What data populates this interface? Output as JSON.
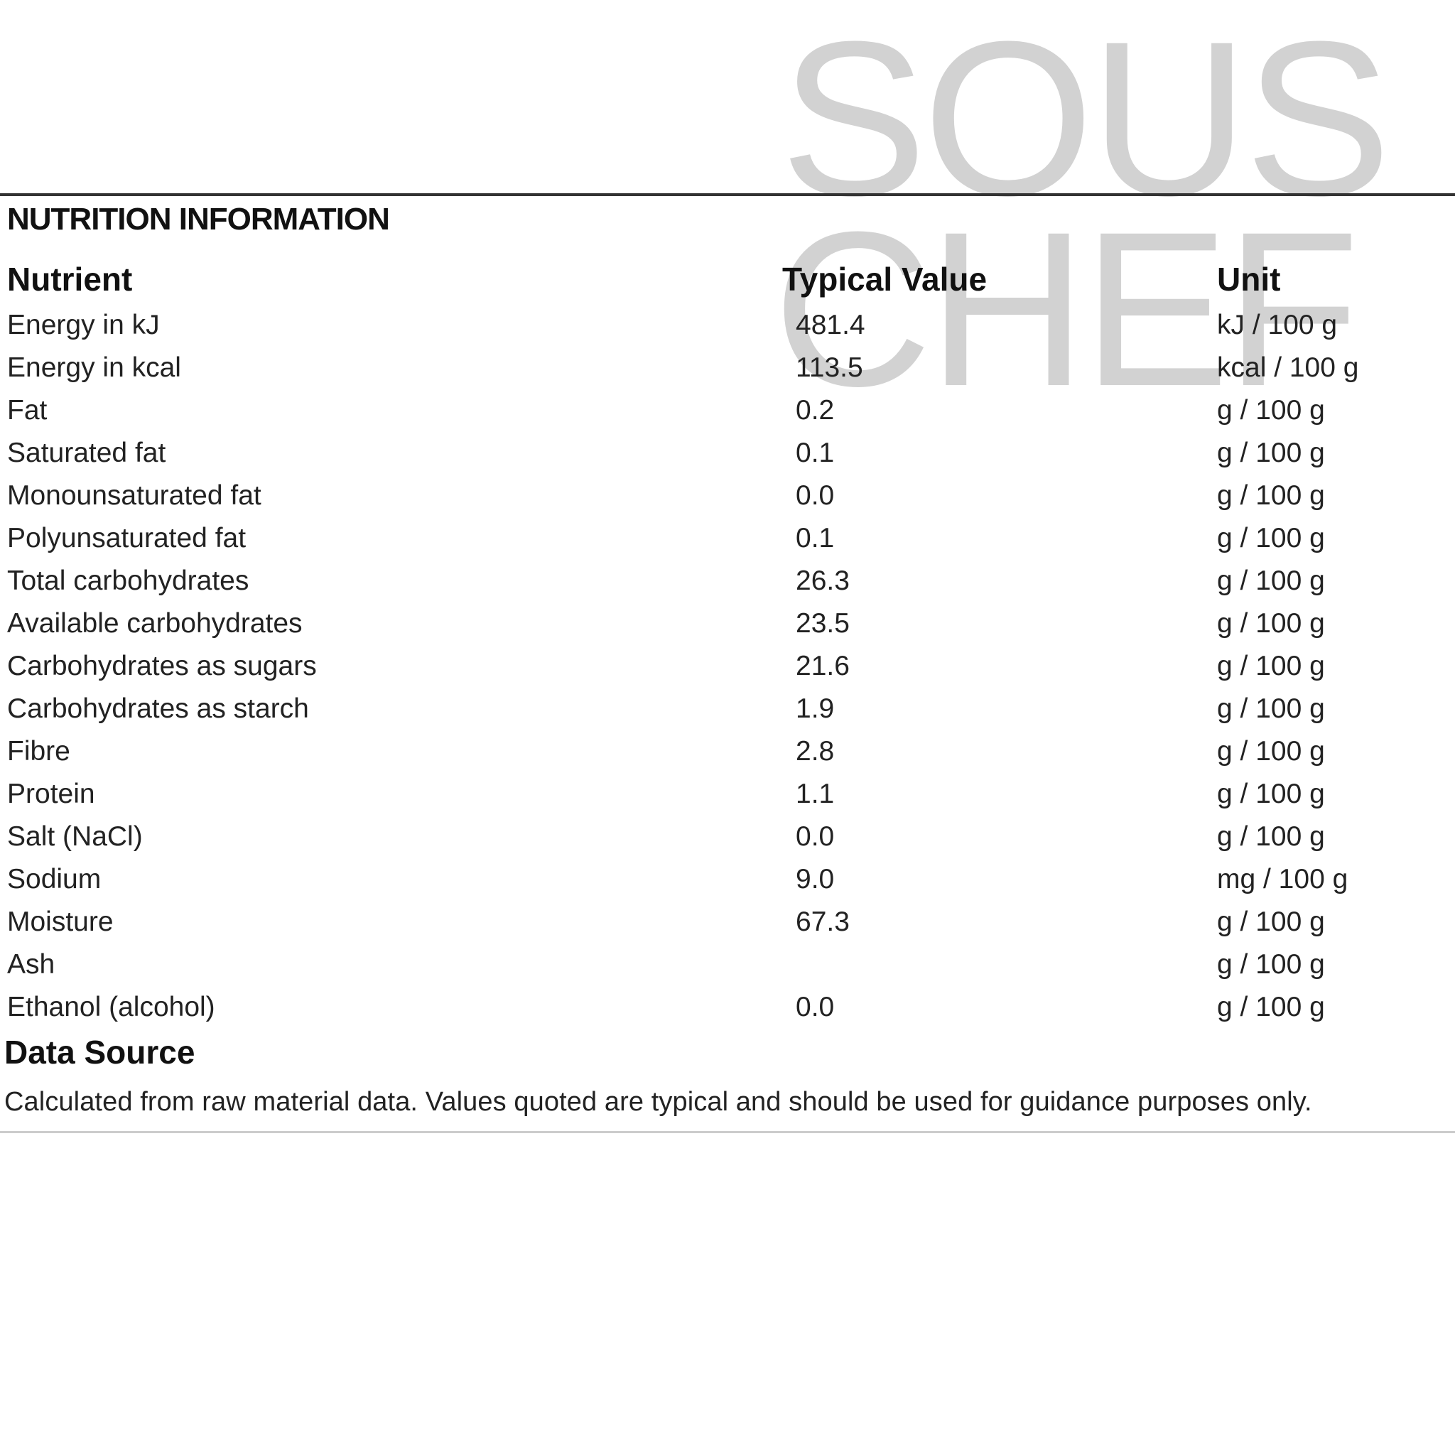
{
  "watermark": {
    "line1": "SOUS",
    "line2": "CHEF",
    "color": "#d2d2d2"
  },
  "title": "NUTRITION INFORMATION",
  "columns": {
    "nutrient": "Nutrient",
    "value": "Typical Value",
    "unit": "Unit"
  },
  "rows": [
    {
      "nutrient": "Energy in kJ",
      "value": "481.4",
      "unit": "kJ / 100 g"
    },
    {
      "nutrient": "Energy in kcal",
      "value": "113.5",
      "unit": "kcal / 100 g"
    },
    {
      "nutrient": "Fat",
      "value": "0.2",
      "unit": "g / 100 g"
    },
    {
      "nutrient": "Saturated fat",
      "value": "0.1",
      "unit": "g / 100 g"
    },
    {
      "nutrient": "Monounsaturated fat",
      "value": "0.0",
      "unit": "g / 100 g"
    },
    {
      "nutrient": "Polyunsaturated fat",
      "value": "0.1",
      "unit": "g / 100 g"
    },
    {
      "nutrient": "Total carbohydrates",
      "value": "26.3",
      "unit": "g / 100 g"
    },
    {
      "nutrient": "Available carbohydrates",
      "value": "23.5",
      "unit": "g / 100 g"
    },
    {
      "nutrient": "Carbohydrates as sugars",
      "value": "21.6",
      "unit": "g / 100 g"
    },
    {
      "nutrient": "Carbohydrates as starch",
      "value": "1.9",
      "unit": "g / 100 g"
    },
    {
      "nutrient": "Fibre",
      "value": "2.8",
      "unit": "g / 100 g"
    },
    {
      "nutrient": "Protein",
      "value": "1.1",
      "unit": "g / 100 g"
    },
    {
      "nutrient": "Salt (NaCl)",
      "value": "0.0",
      "unit": "g / 100 g"
    },
    {
      "nutrient": "Sodium",
      "value": "9.0",
      "unit": "mg / 100 g"
    },
    {
      "nutrient": "Moisture",
      "value": "67.3",
      "unit": "g / 100 g"
    },
    {
      "nutrient": "Ash",
      "value": "",
      "unit": "g / 100 g"
    },
    {
      "nutrient": "Ethanol (alcohol)",
      "value": "0.0",
      "unit": "g / 100 g"
    }
  ],
  "data_source": {
    "title": "Data Source",
    "text": "Calculated from raw material data. Values quoted are typical and should be used for guidance purposes only."
  }
}
